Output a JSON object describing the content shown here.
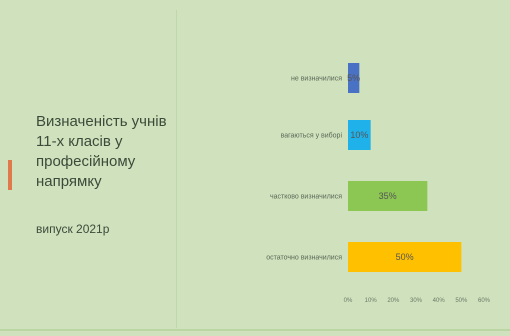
{
  "title": "Визначеність учнів 11-х класів у професійному напрямку",
  "title_lines": [
    "Визначеність учнів",
    "11-х класів у",
    "професійному",
    "напрямку"
  ],
  "subtitle": "випуск 2021р",
  "chart_data": {
    "type": "bar",
    "orientation": "horizontal",
    "categories": [
      "не визначилися",
      "вагаються у виборі",
      "частково визначилися",
      "остаточно визначилися"
    ],
    "values": [
      5,
      10,
      35,
      50
    ],
    "data_labels": [
      "5%",
      "10%",
      "35%",
      "50%"
    ],
    "bar_colors": [
      "#4a72c4",
      "#1fb2ea",
      "#8cc653",
      "#ffc000"
    ],
    "xlim": [
      0,
      60
    ],
    "xticks": [
      0,
      10,
      20,
      30,
      40,
      50,
      60
    ],
    "xtick_labels": [
      "0%",
      "10%",
      "20%",
      "30%",
      "40%",
      "50%",
      "60%"
    ],
    "xlabel": "",
    "ylabel": "",
    "grid": false,
    "legend": "none"
  },
  "colors": {
    "background": "#cfe2bd",
    "accent": "#e07a4a",
    "text": "#3c4a3a"
  }
}
